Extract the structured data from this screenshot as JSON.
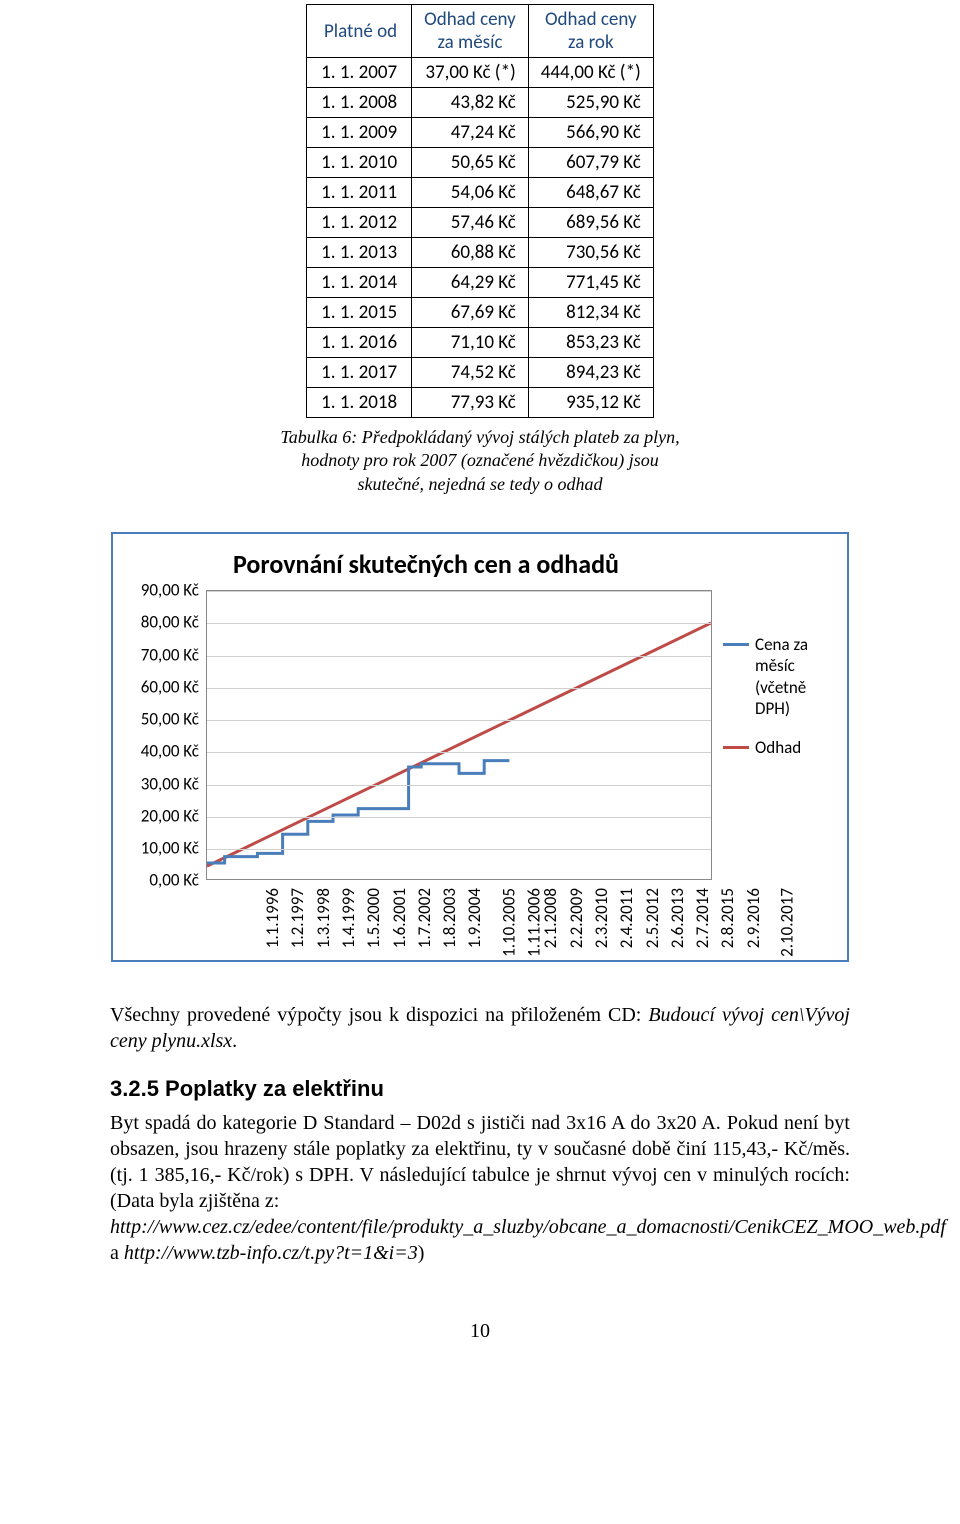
{
  "table": {
    "headers": [
      "Platné od",
      "Odhad ceny\nza měsíc",
      "Odhad ceny\nza rok"
    ],
    "rows": [
      [
        "1. 1. 2007",
        "37,00 Kč (*)",
        "444,00 Kč (*)"
      ],
      [
        "1. 1. 2008",
        "43,82 Kč",
        "525,90 Kč"
      ],
      [
        "1. 1. 2009",
        "47,24 Kč",
        "566,90 Kč"
      ],
      [
        "1. 1. 2010",
        "50,65 Kč",
        "607,79 Kč"
      ],
      [
        "1. 1. 2011",
        "54,06 Kč",
        "648,67 Kč"
      ],
      [
        "1. 1. 2012",
        "57,46 Kč",
        "689,56 Kč"
      ],
      [
        "1. 1. 2013",
        "60,88 Kč",
        "730,56 Kč"
      ],
      [
        "1. 1. 2014",
        "64,29 Kč",
        "771,45 Kč"
      ],
      [
        "1. 1. 2015",
        "67,69 Kč",
        "812,34 Kč"
      ],
      [
        "1. 1. 2016",
        "71,10 Kč",
        "853,23 Kč"
      ],
      [
        "1. 1. 2017",
        "74,52 Kč",
        "894,23 Kč"
      ],
      [
        "1. 1. 2018",
        "77,93 Kč",
        "935,12 Kč"
      ]
    ],
    "caption_l1": "Tabulka 6: Předpokládaný vývoj stálých plateb za plyn,",
    "caption_l2": "hodnoty pro rok 2007 (označené hvězdičkou) jsou",
    "caption_l3": "skutečné, nejedná se tedy o odhad"
  },
  "chart": {
    "title": "Porovnání skutečných cen a odhadů",
    "ylim": [
      0,
      90
    ],
    "ytick_step": 10,
    "yticks": [
      "0,00 Kč",
      "10,00 Kč",
      "20,00 Kč",
      "30,00 Kč",
      "40,00 Kč",
      "50,00 Kč",
      "60,00 Kč",
      "70,00 Kč",
      "80,00 Kč",
      "90,00 Kč"
    ],
    "xticks": [
      "1.1.1996",
      "1.2.1997",
      "1.3.1998",
      "1.4.1999",
      "1.5.2000",
      "1.6.2001",
      "1.7.2002",
      "1.8.2003",
      "1.9.2004",
      "1.10.2005",
      "1.11.2006",
      "2.1.2008",
      "2.2.2009",
      "2.3.2010",
      "2.4.2011",
      "2.5.2012",
      "2.6.2013",
      "2.7.2014",
      "2.8.2015",
      "2.9.2016",
      "2.10.2017"
    ],
    "series_actual": {
      "color": "#4a7ebb",
      "label_l1": "Cena za",
      "label_l2": "měsíc",
      "label_l3": "(včetně",
      "label_l4": "DPH)",
      "points": [
        [
          0,
          5
        ],
        [
          0.7,
          5
        ],
        [
          0.7,
          7
        ],
        [
          2,
          7
        ],
        [
          2,
          8
        ],
        [
          3,
          8
        ],
        [
          3,
          14
        ],
        [
          4,
          14
        ],
        [
          4,
          18
        ],
        [
          5,
          18
        ],
        [
          5,
          20
        ],
        [
          6,
          20
        ],
        [
          6,
          22
        ],
        [
          7,
          22
        ],
        [
          7,
          22
        ],
        [
          8,
          22
        ],
        [
          8,
          35
        ],
        [
          8.5,
          35
        ],
        [
          8.5,
          36
        ],
        [
          10,
          36
        ],
        [
          10,
          33
        ],
        [
          11,
          33
        ],
        [
          11,
          37
        ],
        [
          12,
          37
        ]
      ]
    },
    "series_estimate": {
      "color": "#be4b48",
      "label": "Odhad",
      "points": [
        [
          0,
          4
        ],
        [
          20,
          80
        ]
      ]
    },
    "grid_color": "#d0d0d0",
    "axis_color": "#888888",
    "background": "#ffffff"
  },
  "para1_a": "Všechny provedené výpočty jsou k dispozici na přiloženém CD: ",
  "para1_b": "Budoucí vývoj cen\\Vývoj ceny plynu.xlsx",
  "para1_c": ".",
  "sec_heading": "3.2.5 Poplatky za elektřinu",
  "para2_a": "Byt spadá do kategorie D Standard – D02d s jističi nad 3x16 A do 3x20 A. Pokud není byt obsazen, jsou hrazeny stále poplatky za elektřinu, ty v současné době činí 115,43,- Kč/měs. (tj. 1 385,16,- Kč/rok) s DPH. V následující tabulce je shrnut vývoj cen v minulých rocích: (Data byla zjištěna z:",
  "para2_b": "http://www.cez.cz/edee/content/file/produkty_a_sluzby/obcane_a_domacnosti/CenikCEZ_MOO_web.pdf",
  "para2_c": "a",
  "para2_d": "http://www.tzb-info.cz/t.py?t=1&i=3",
  "para2_e": ")",
  "page_number": "10"
}
